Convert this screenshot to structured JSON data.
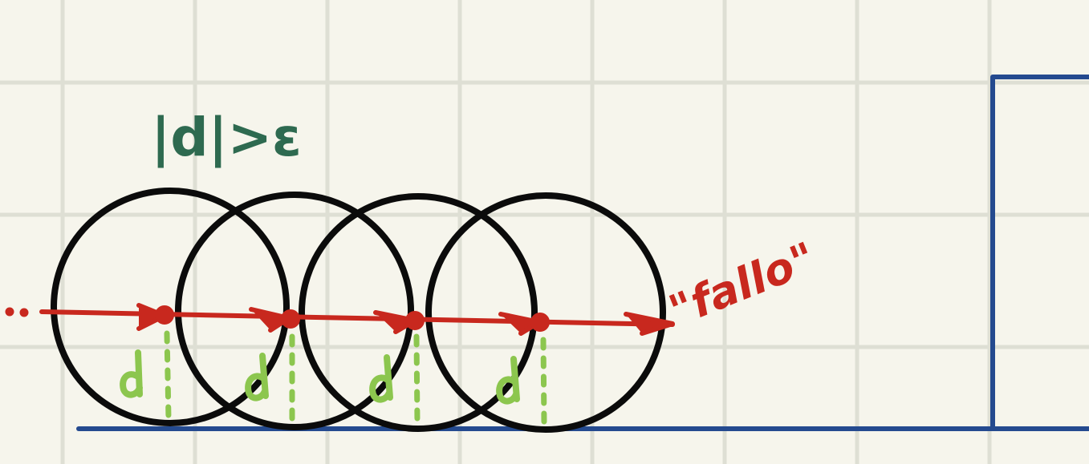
{
  "labels": {
    "condition": "|d|>ε",
    "result": "\"fallo\"",
    "distance": "d"
  },
  "colors": {
    "paper": "#f6f5ec",
    "grid": "#dedfd4",
    "circles": "#0b0b0b",
    "ray": "#c8281e",
    "distance_marks": "#8cc64e",
    "condition_label": "#2e6a50",
    "geometry": "#244a8f"
  }
}
